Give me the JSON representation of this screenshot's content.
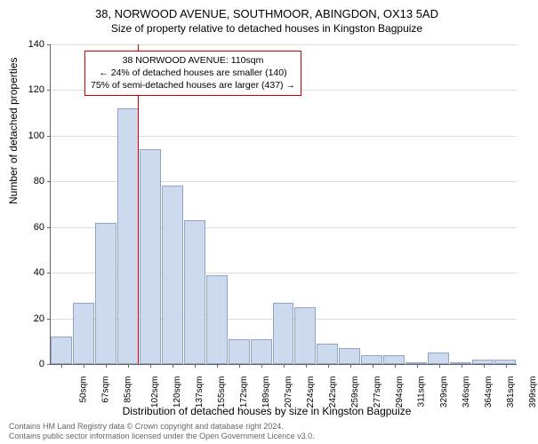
{
  "title": "38, NORWOOD AVENUE, SOUTHMOOR, ABINGDON, OX13 5AD",
  "subtitle": "Size of property relative to detached houses in Kingston Bagpuize",
  "ylabel": "Number of detached properties",
  "xlabel": "Distribution of detached houses by size in Kingston Bagpuize",
  "chart": {
    "type": "histogram",
    "ylim": [
      0,
      140
    ],
    "ytick_step": 20,
    "yticks": [
      0,
      20,
      40,
      60,
      80,
      100,
      120,
      140
    ],
    "bar_color": "#cdd9ed",
    "bar_border_color": "#8ea5c9",
    "grid_color": "#dddddd",
    "axis_color": "#666666",
    "reference_line_color": "#cc0000",
    "reference_x": 110,
    "categories": [
      "50sqm",
      "67sqm",
      "85sqm",
      "102sqm",
      "120sqm",
      "137sqm",
      "155sqm",
      "172sqm",
      "189sqm",
      "207sqm",
      "224sqm",
      "242sqm",
      "259sqm",
      "277sqm",
      "294sqm",
      "311sqm",
      "329sqm",
      "346sqm",
      "364sqm",
      "381sqm",
      "399sqm"
    ],
    "values": [
      12,
      27,
      62,
      112,
      94,
      78,
      63,
      39,
      11,
      11,
      27,
      25,
      9,
      7,
      4,
      4,
      0,
      5,
      0,
      2,
      2
    ]
  },
  "info_box": {
    "line1": "38 NORWOOD AVENUE: 110sqm",
    "line2": "← 24% of detached houses are smaller (140)",
    "line3": "75% of semi-detached houses are larger (437) →"
  },
  "footer": {
    "line1": "Contains HM Land Registry data © Crown copyright and database right 2024.",
    "line2": "Contains public sector information licensed under the Open Government Licence v3.0."
  }
}
